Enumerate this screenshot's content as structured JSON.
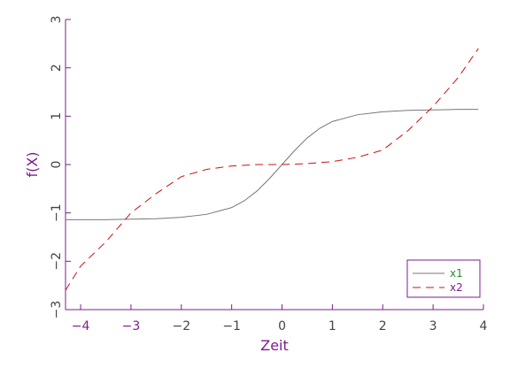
{
  "chart_data": {
    "type": "line",
    "xlabel": "Zeit",
    "ylabel": "f(X)",
    "xlim": [
      -4.3,
      4.0
    ],
    "ylim": [
      -3,
      3
    ],
    "x_ticks": [
      "-4",
      "-3",
      "-2",
      "-1",
      "0",
      "1",
      "2",
      "3",
      "4"
    ],
    "y_ticks": [
      "-3",
      "-2",
      "-1",
      "0",
      "1",
      "2",
      "3"
    ],
    "grid": false,
    "legend_position": "bottom-right",
    "axis_color": "#7a1f8a",
    "series": [
      {
        "name": "x1",
        "color": "#777777",
        "style": "solid",
        "x": [
          -4.3,
          -4.0,
          -3.5,
          -3.0,
          -2.5,
          -2.0,
          -1.5,
          -1.0,
          -0.75,
          -0.5,
          -0.25,
          0.0,
          0.25,
          0.5,
          0.75,
          1.0,
          1.5,
          2.0,
          2.5,
          3.0,
          3.5,
          3.9
        ],
        "y": [
          -1.14,
          -1.14,
          -1.14,
          -1.13,
          -1.12,
          -1.09,
          -1.03,
          -0.89,
          -0.75,
          -0.55,
          -0.29,
          0.0,
          0.29,
          0.55,
          0.75,
          0.89,
          1.03,
          1.09,
          1.12,
          1.13,
          1.14,
          1.14
        ]
      },
      {
        "name": "x2",
        "color": "#cc1111",
        "style": "dashed",
        "x": [
          -4.3,
          -4.0,
          -3.5,
          -3.0,
          -2.5,
          -2.0,
          -1.5,
          -1.0,
          -0.5,
          0.0,
          0.5,
          1.0,
          1.5,
          2.0,
          2.5,
          3.0,
          3.5,
          3.9
        ],
        "y": [
          -2.6,
          -2.1,
          -1.6,
          -1.0,
          -0.6,
          -0.25,
          -0.1,
          -0.03,
          0.0,
          0.0,
          0.02,
          0.06,
          0.15,
          0.3,
          0.7,
          1.2,
          1.8,
          2.4
        ]
      }
    ]
  }
}
